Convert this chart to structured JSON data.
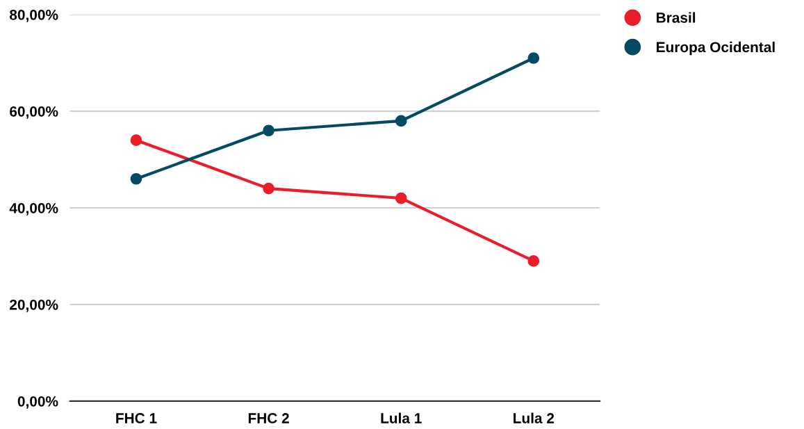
{
  "chart_data": {
    "type": "line",
    "categories": [
      "FHC 1",
      "FHC 2",
      "Lula 1",
      "Lula 2"
    ],
    "series": [
      {
        "name": "Brasil",
        "color": "#ea1d2a",
        "values": [
          54,
          44,
          42,
          29
        ]
      },
      {
        "name": "Europa Ocidental",
        "color": "#044a63",
        "values": [
          46,
          56,
          58,
          71
        ]
      }
    ],
    "ylim": [
      0,
      80
    ],
    "yticks": [
      {
        "value": 0,
        "label": "0,00%"
      },
      {
        "value": 20,
        "label": "20,00%"
      },
      {
        "value": 40,
        "label": "40,00%"
      },
      {
        "value": 60,
        "label": "60,00%"
      },
      {
        "value": 80,
        "label": "80,00%"
      }
    ],
    "grid": "y",
    "legend": "top right",
    "marker": "circle",
    "line_style": "solid"
  }
}
